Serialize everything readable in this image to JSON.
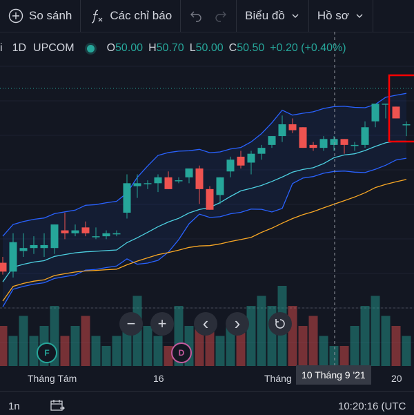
{
  "toolbar": {
    "compare_label": "So sánh",
    "indicators_label": "Các chỉ báo",
    "chart_label": "Biểu đồ",
    "profile_label": "Hồ sơ"
  },
  "legend": {
    "symbol_suffix": "i",
    "interval": "1D",
    "exchange": "UPCOM",
    "o_key": "O",
    "o_val": "50.00",
    "h_key": "H",
    "h_val": "50.70",
    "l_key": "L",
    "l_val": "50.00",
    "c_key": "C",
    "c_val": "50.50",
    "change": "+0.20 (+0.40%)"
  },
  "controls": {
    "zoom_out": "−",
    "zoom_in": "+",
    "scroll_left": "‹",
    "scroll_right": "›"
  },
  "xaxis": {
    "labels": [
      "Tháng Tám",
      "16",
      "Tháng",
      "20"
    ],
    "crosshair_label": "10 Tháng 9 '21"
  },
  "events": {
    "marker_f": "F",
    "marker_d": "D"
  },
  "bottombar": {
    "interval": "1n",
    "clock": "10:20:16 (UTC"
  },
  "colors": {
    "up": "#26a69a",
    "down": "#ef5350",
    "bb_band": "#2962ff",
    "ma_fast": "#4dd0e1",
    "ma_slow": "#f9a825",
    "highlight": "#ff0000"
  },
  "chart_data": {
    "type": "candlestick",
    "series": [
      {
        "o": 45.9,
        "h": 46.1,
        "l": 45.5,
        "c": 45.6
      },
      {
        "o": 45.6,
        "h": 46.9,
        "l": 45.4,
        "c": 46.6
      },
      {
        "o": 46.3,
        "h": 46.9,
        "l": 46.1,
        "c": 46.4
      },
      {
        "o": 46.4,
        "h": 46.8,
        "l": 46.2,
        "c": 46.5
      },
      {
        "o": 46.4,
        "h": 46.9,
        "l": 46.1,
        "c": 46.5
      },
      {
        "o": 46.4,
        "h": 47.2,
        "l": 46.2,
        "c": 47.2
      },
      {
        "o": 47.0,
        "h": 47.6,
        "l": 46.7,
        "c": 46.9
      },
      {
        "o": 46.9,
        "h": 47.2,
        "l": 46.8,
        "c": 47.0
      },
      {
        "o": 47.1,
        "h": 47.3,
        "l": 46.8,
        "c": 46.9
      },
      {
        "o": 46.8,
        "h": 47.1,
        "l": 46.7,
        "c": 46.8
      },
      {
        "o": 46.8,
        "h": 47.0,
        "l": 46.7,
        "c": 46.9
      },
      {
        "o": 46.9,
        "h": 47.0,
        "l": 46.8,
        "c": 46.9
      },
      {
        "o": 47.6,
        "h": 48.9,
        "l": 47.4,
        "c": 48.6
      },
      {
        "o": 48.5,
        "h": 48.9,
        "l": 48.1,
        "c": 48.6
      },
      {
        "o": 48.6,
        "h": 48.7,
        "l": 48.4,
        "c": 48.6
      },
      {
        "o": 48.6,
        "h": 48.9,
        "l": 48.3,
        "c": 48.8
      },
      {
        "o": 48.8,
        "h": 49.0,
        "l": 48.4,
        "c": 48.4
      },
      {
        "o": 48.7,
        "h": 48.8,
        "l": 48.6,
        "c": 48.7
      },
      {
        "o": 48.8,
        "h": 49.1,
        "l": 48.6,
        "c": 49.1
      },
      {
        "o": 49.1,
        "h": 49.2,
        "l": 47.9,
        "c": 48.4
      },
      {
        "o": 48.4,
        "h": 48.5,
        "l": 47.7,
        "c": 47.7
      },
      {
        "o": 48.2,
        "h": 48.8,
        "l": 47.9,
        "c": 48.8
      },
      {
        "o": 49.0,
        "h": 49.5,
        "l": 48.8,
        "c": 49.4
      },
      {
        "o": 49.5,
        "h": 49.7,
        "l": 49.1,
        "c": 49.2
      },
      {
        "o": 49.3,
        "h": 49.7,
        "l": 48.9,
        "c": 49.6
      },
      {
        "o": 49.6,
        "h": 49.9,
        "l": 49.4,
        "c": 49.8
      },
      {
        "o": 49.9,
        "h": 50.2,
        "l": 49.8,
        "c": 50.2
      },
      {
        "o": 50.2,
        "h": 50.9,
        "l": 50.0,
        "c": 50.6
      },
      {
        "o": 50.6,
        "h": 50.8,
        "l": 50.3,
        "c": 50.4
      },
      {
        "o": 50.5,
        "h": 50.5,
        "l": 49.8,
        "c": 49.8
      },
      {
        "o": 49.9,
        "h": 50.0,
        "l": 49.7,
        "c": 49.8
      },
      {
        "o": 49.8,
        "h": 50.2,
        "l": 49.7,
        "c": 50.1
      },
      {
        "o": 49.9,
        "h": 50.2,
        "l": 49.7,
        "c": 50.1
      },
      {
        "o": 50.1,
        "h": 50.1,
        "l": 49.6,
        "c": 49.9
      },
      {
        "o": 49.9,
        "h": 50.0,
        "l": 49.7,
        "c": 49.9
      },
      {
        "o": 49.9,
        "h": 50.7,
        "l": 49.8,
        "c": 50.5
      },
      {
        "o": 50.7,
        "h": 51.3,
        "l": 50.5,
        "c": 51.3
      },
      {
        "o": 51.3,
        "h": 51.3,
        "l": 50.8,
        "c": 51.3
      },
      {
        "o": 51.2,
        "h": 51.2,
        "l": 50.8,
        "c": 50.8
      },
      {
        "o": 50.6,
        "h": 50.7,
        "l": 50.2,
        "c": 50.6
      }
    ],
    "volume": [
      4,
      3,
      5,
      3,
      4,
      6,
      3,
      4,
      5,
      3,
      2,
      3,
      5,
      7,
      4,
      3,
      2,
      6,
      4,
      4,
      5,
      3,
      4,
      5,
      6,
      7,
      6,
      8,
      6,
      4,
      5,
      3,
      2,
      2,
      4,
      6,
      7,
      5,
      4,
      3
    ]
  }
}
